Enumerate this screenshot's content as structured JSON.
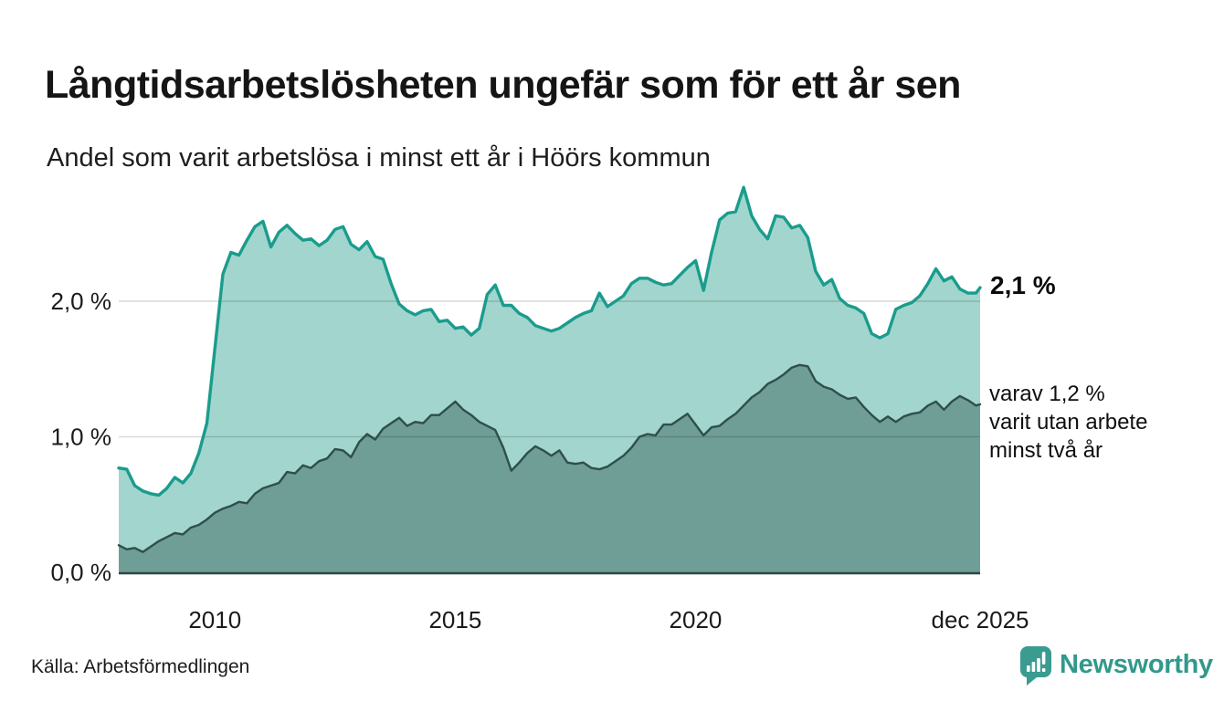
{
  "chart_data": {
    "type": "area",
    "title": "Långtidsarbetslösheten ungefär som för ett år sen",
    "subtitle": "Andel som varit arbetslösa i minst ett år i Höörs kommun",
    "x": {
      "start": 2008.0,
      "points_per_year": 6,
      "end": 2025.92,
      "unit": "year"
    },
    "xlim": [
      2008.0,
      2025.92
    ],
    "ylim": [
      0,
      2.95
    ],
    "grid": true,
    "legend_position": "none-direct-labels",
    "yticks": [
      {
        "value": 0,
        "label": "0,0 %"
      },
      {
        "value": 1,
        "label": "1,0 %"
      },
      {
        "value": 2,
        "label": "2,0 %"
      }
    ],
    "xticks": [
      {
        "x": 2010,
        "label": "2010"
      },
      {
        "x": 2015,
        "label": "2015"
      },
      {
        "x": 2020,
        "label": "2020"
      },
      {
        "x": 2025.92,
        "label": "dec 2025"
      }
    ],
    "series": [
      {
        "name": "Andel arbetslösa minst ett år",
        "stroke": "#1a9c8d",
        "fill": "#a2d5cd",
        "latest_value_label": "2,1 %",
        "values": [
          0.77,
          0.76,
          0.64,
          0.6,
          0.58,
          0.57,
          0.62,
          0.7,
          0.66,
          0.73,
          0.88,
          1.1,
          1.65,
          2.2,
          2.36,
          2.34,
          2.45,
          2.55,
          2.59,
          2.4,
          2.51,
          2.56,
          2.5,
          2.45,
          2.46,
          2.41,
          2.45,
          2.53,
          2.55,
          2.42,
          2.38,
          2.44,
          2.33,
          2.31,
          2.13,
          1.98,
          1.93,
          1.9,
          1.93,
          1.94,
          1.85,
          1.86,
          1.8,
          1.81,
          1.75,
          1.8,
          2.05,
          2.12,
          1.97,
          1.97,
          1.91,
          1.88,
          1.82,
          1.8,
          1.78,
          1.8,
          1.84,
          1.88,
          1.91,
          1.93,
          2.06,
          1.96,
          2.0,
          2.04,
          2.13,
          2.17,
          2.17,
          2.14,
          2.12,
          2.13,
          2.19,
          2.25,
          2.3,
          2.08,
          2.36,
          2.6,
          2.65,
          2.66,
          2.84,
          2.63,
          2.53,
          2.46,
          2.63,
          2.62,
          2.54,
          2.56,
          2.47,
          2.22,
          2.12,
          2.16,
          2.02,
          1.97,
          1.95,
          1.91,
          1.76,
          1.73,
          1.76,
          1.94,
          1.97,
          1.99,
          2.04,
          2.13,
          2.24,
          2.15,
          2.18,
          2.09,
          2.06,
          2.06,
          2.1
        ]
      },
      {
        "name": "Andel arbetslösa minst två år",
        "stroke": "#2f4f4b",
        "fill": "#6f9e97",
        "latest_value_label": "varav 1,2 % varit utan arbete minst två år",
        "values": [
          0.2,
          0.17,
          0.18,
          0.15,
          0.19,
          0.23,
          0.26,
          0.29,
          0.28,
          0.33,
          0.35,
          0.39,
          0.44,
          0.47,
          0.49,
          0.52,
          0.51,
          0.58,
          0.62,
          0.64,
          0.66,
          0.74,
          0.73,
          0.79,
          0.77,
          0.82,
          0.84,
          0.91,
          0.9,
          0.85,
          0.96,
          1.02,
          0.98,
          1.06,
          1.1,
          1.14,
          1.08,
          1.11,
          1.1,
          1.16,
          1.16,
          1.21,
          1.26,
          1.2,
          1.16,
          1.11,
          1.08,
          1.05,
          0.92,
          0.75,
          0.81,
          0.88,
          0.93,
          0.9,
          0.86,
          0.9,
          0.81,
          0.8,
          0.81,
          0.77,
          0.76,
          0.78,
          0.82,
          0.86,
          0.92,
          1.0,
          1.02,
          1.01,
          1.09,
          1.09,
          1.13,
          1.17,
          1.09,
          1.01,
          1.07,
          1.08,
          1.13,
          1.17,
          1.23,
          1.29,
          1.33,
          1.39,
          1.42,
          1.46,
          1.51,
          1.53,
          1.52,
          1.41,
          1.37,
          1.35,
          1.31,
          1.28,
          1.29,
          1.22,
          1.16,
          1.11,
          1.15,
          1.11,
          1.15,
          1.17,
          1.18,
          1.23,
          1.26,
          1.2,
          1.26,
          1.3,
          1.27,
          1.23,
          1.24
        ]
      }
    ],
    "annotations": {
      "latest_total": "2,1 %",
      "note_lines": [
        "varav 1,2 %",
        "varit utan arbete",
        "minst två år"
      ]
    }
  },
  "footer": {
    "source": "Källa: Arbetsförmedlingen",
    "brand": "Newsworthy"
  },
  "colors": {
    "accent_teal": "#1a9c8d",
    "fill_light": "#a2d5cd",
    "line_dark": "#2f4f4b",
    "fill_dark": "#6f9e97",
    "gridline": "#d9d9d9",
    "axis_line": "#2c4743",
    "brand_teal": "#31998c",
    "text": "#151515"
  }
}
